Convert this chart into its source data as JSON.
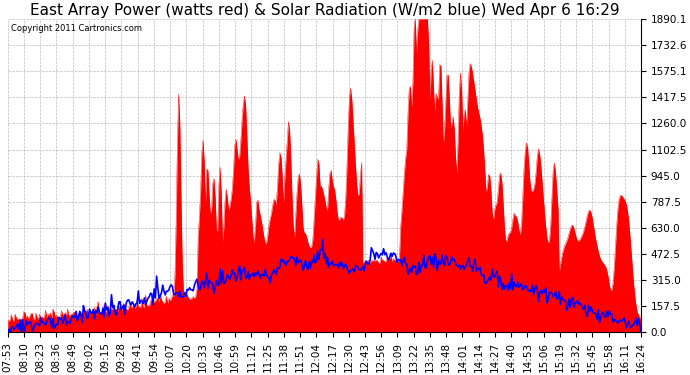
{
  "title": "East Array Power (watts red) & Solar Radiation (W/m2 blue) Wed Apr 6 16:29",
  "copyright_text": "Copyright 2011 Cartronics.com",
  "ylabel_right_ticks": [
    0.0,
    157.5,
    315.0,
    472.5,
    630.0,
    787.5,
    945.0,
    1102.5,
    1260.0,
    1417.5,
    1575.1,
    1732.6,
    1890.1
  ],
  "ylim": [
    0,
    1890.1
  ],
  "xtick_labels": [
    "07:53",
    "08:10",
    "08:23",
    "08:36",
    "08:49",
    "09:02",
    "09:15",
    "09:28",
    "09:41",
    "09:54",
    "10:07",
    "10:20",
    "10:33",
    "10:46",
    "10:59",
    "11:12",
    "11:25",
    "11:38",
    "11:51",
    "12:04",
    "12:17",
    "12:30",
    "12:43",
    "12:56",
    "13:09",
    "13:22",
    "13:35",
    "13:48",
    "14:01",
    "14:14",
    "14:27",
    "14:40",
    "14:53",
    "15:06",
    "15:19",
    "15:32",
    "15:45",
    "15:58",
    "16:11",
    "16:24"
  ],
  "background_color": "#ffffff",
  "plot_background": "#ffffff",
  "grid_color": "#aaaaaa",
  "red_color": "#ff0000",
  "blue_color": "#0000ff",
  "title_fontsize": 11,
  "tick_fontsize": 7.5
}
